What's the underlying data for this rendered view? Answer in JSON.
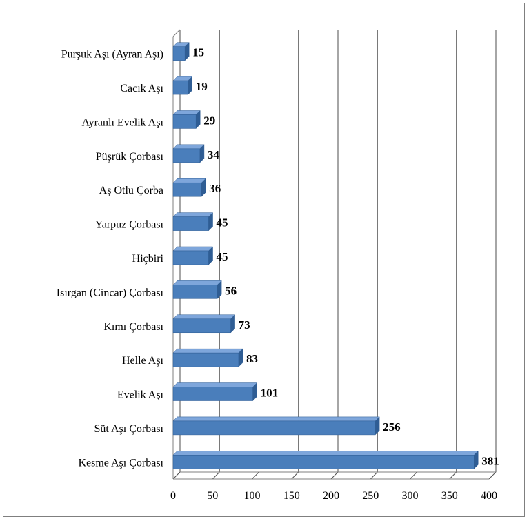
{
  "chart_data": {
    "type": "bar",
    "orientation": "horizontal",
    "style": "3d",
    "categories": [
      "Purşuk Aşı (Ayran Aşı)",
      "Cacık Aşı",
      "Ayranlı Evelik Aşı",
      "Püşrük Çorbası",
      "Aş Otlu Çorba",
      "Yarpuz Çorbası",
      "Hiçbiri",
      "Isırgan (Cincar) Çorbası",
      "Kımı Çorbası",
      "Helle Aşı",
      "Evelik Aşı",
      "Süt Aşı Çorbası",
      "Kesme Aşı Çorbası"
    ],
    "values": [
      15,
      19,
      29,
      34,
      36,
      45,
      45,
      56,
      73,
      83,
      101,
      256,
      381
    ],
    "xlim": [
      0,
      400
    ],
    "xticks": [
      0,
      50,
      100,
      150,
      200,
      250,
      300,
      350,
      400
    ],
    "grid": "vertical",
    "legend": "none",
    "bar_color": "#4a7ebb",
    "bar_top_color": "#7ea6db",
    "bar_side_color": "#2f5d94",
    "grid_color": "#4d4d4d"
  }
}
